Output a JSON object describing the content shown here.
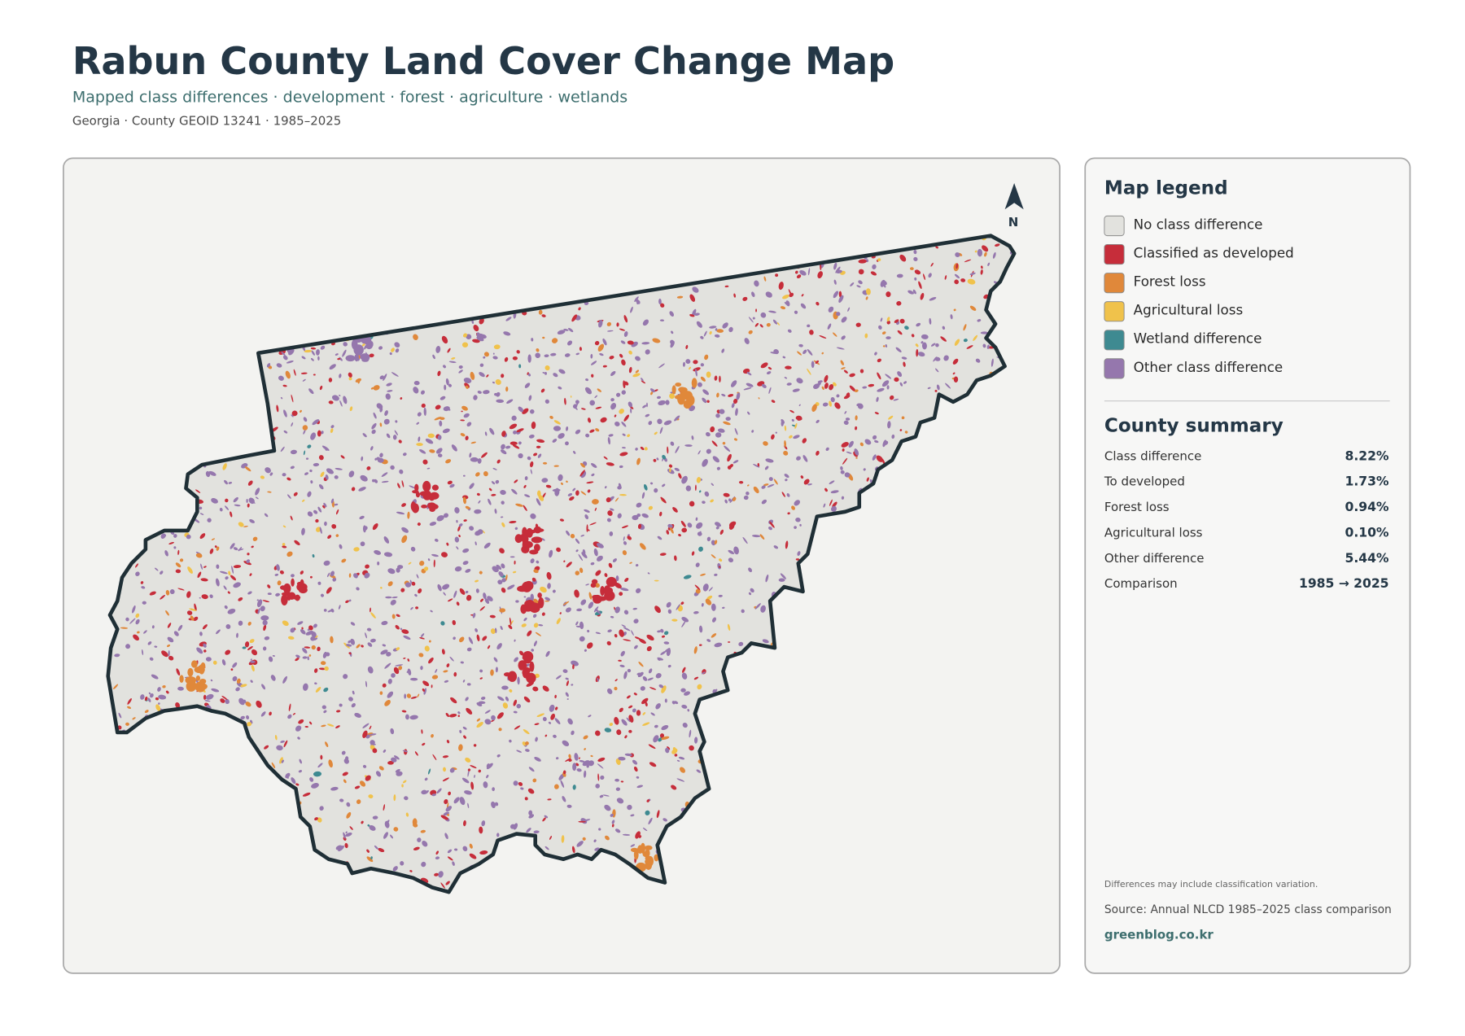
{
  "header": {
    "title": "Rabun County Land Cover Change Map",
    "subtitle": "Mapped class differences · development · forest · agriculture · wetlands",
    "meta": "Georgia · County GEOID 13241 · 1985–2025"
  },
  "map": {
    "north_label": "N"
  },
  "legend": {
    "title": "Map legend",
    "items": [
      {
        "label": "No class difference",
        "color": "#e2e2de"
      },
      {
        "label": "Classified as developed",
        "color": "#c62d3a"
      },
      {
        "label": "Forest loss",
        "color": "#e0883a"
      },
      {
        "label": "Agricultural loss",
        "color": "#f0c24b"
      },
      {
        "label": "Wetland difference",
        "color": "#3e8a91"
      },
      {
        "label": "Other class difference",
        "color": "#9577ad"
      }
    ]
  },
  "summary": {
    "title": "County summary",
    "rows": [
      {
        "label": "Class difference",
        "value": "8.22%"
      },
      {
        "label": "To developed",
        "value": "1.73%"
      },
      {
        "label": "Forest loss",
        "value": "0.94%"
      },
      {
        "label": "Agricultural loss",
        "value": "0.10%"
      },
      {
        "label": "Other difference",
        "value": "5.44%"
      },
      {
        "label": "Comparison",
        "value": "1985 → 2025"
      }
    ]
  },
  "footer": {
    "note": "Differences may include classification variation.",
    "source": "Source: Annual NLCD 1985–2025 class comparison",
    "site": "greenblog.co.kr"
  }
}
